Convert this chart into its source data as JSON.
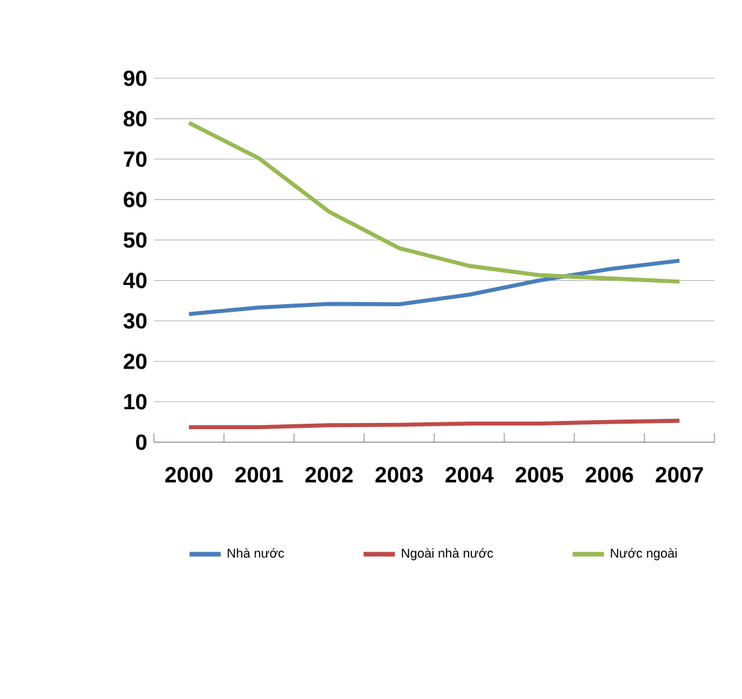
{
  "chart_data": {
    "type": "line",
    "categories": [
      "2000",
      "2001",
      "2002",
      "2003",
      "2004",
      "2005",
      "2006",
      "2007"
    ],
    "series": [
      {
        "name": "Nhà nước",
        "color": "#4a7ebb",
        "values": [
          31.7,
          33.3,
          34.2,
          34.1,
          36.5,
          40,
          42.8,
          44.9
        ]
      },
      {
        "name": "Ngoài nhà nước",
        "color": "#be4b48",
        "values": [
          3.7,
          3.7,
          4.2,
          4.3,
          4.6,
          4.6,
          5,
          5.3
        ]
      },
      {
        "name": "Nước ngoài",
        "color": "#98b954",
        "values": [
          79,
          70.2,
          57,
          48,
          43.6,
          41.3,
          40.5,
          39.7
        ]
      }
    ],
    "ylim": [
      0,
      90
    ],
    "yticks": [
      0,
      10,
      20,
      30,
      40,
      50,
      60,
      70,
      80,
      90
    ],
    "grid": "y",
    "legend": "bottom",
    "marker": "none",
    "line_style": "solid"
  }
}
